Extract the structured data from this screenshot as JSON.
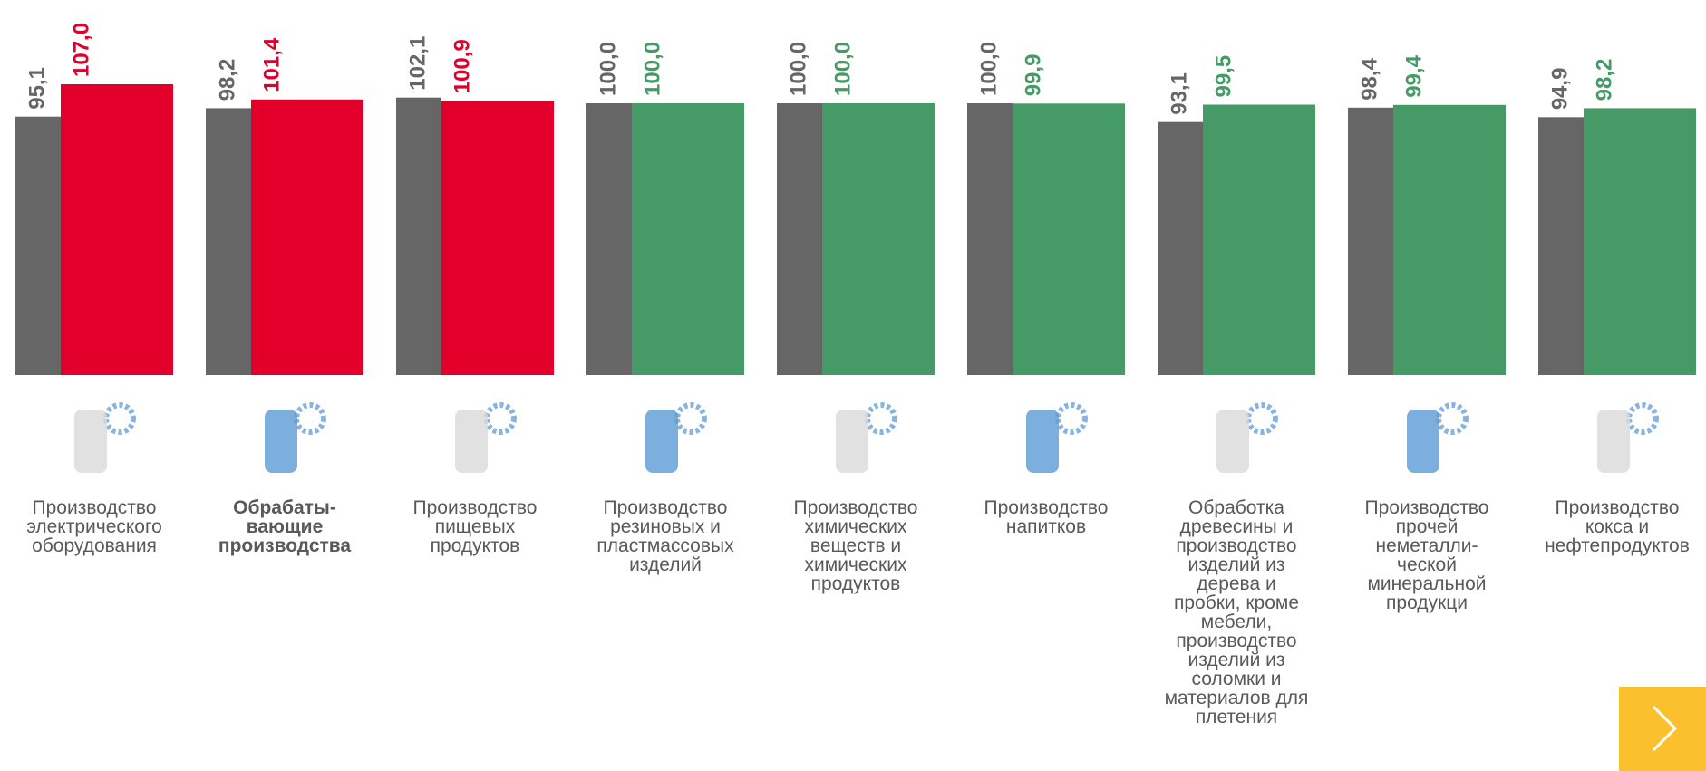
{
  "chart_data": {
    "type": "bar",
    "categories": [
      "Производство\nэлектрического\nоборудования",
      "Обрабаты-\nвающие\nпроизводства",
      "Производство\nпищевых\nпродуктов",
      "Производство\nрезиновых и\nпластмассовых\nизделий",
      "Производство\nхимических\nвеществ и\nхимических\nпродуктов",
      "Производство\nнапитков",
      "Обработка\nдревесины и\nпроизводство\nизделий из\nдерева и\nпробки, кроме\nмебели,\nпроизводство\nизделий из\nсоломки и\nматериалов для\nплетения",
      "Производство\nпрочей\nнеметалли-\nческой\nминеральной\nпродукци",
      "Производство\nкокса и\nнефтепродуктов"
    ],
    "bold_categories": [
      1
    ],
    "series": [
      {
        "color": "#666666",
        "values": [
          95.1,
          98.2,
          102.1,
          100.0,
          100.0,
          100.0,
          93.1,
          98.4,
          94.9
        ],
        "value_labels": [
          "95,1",
          "98,2",
          "102,1",
          "100,0",
          "100,0",
          "100,0",
          "93,1",
          "98,4",
          "94,9"
        ]
      },
      {
        "colors": [
          "#e2002a",
          "#e2002a",
          "#e2002a",
          "#459a66",
          "#459a66",
          "#459a66",
          "#459a66",
          "#459a66",
          "#459a66"
        ],
        "values": [
          107.0,
          101.4,
          100.9,
          100.0,
          100.0,
          99.9,
          99.5,
          99.4,
          98.2
        ],
        "value_labels": [
          "107,0",
          "101,4",
          "100,9",
          "100,0",
          "100,0",
          "99,9",
          "99,5",
          "99,4",
          "98,2"
        ]
      }
    ]
  }
}
